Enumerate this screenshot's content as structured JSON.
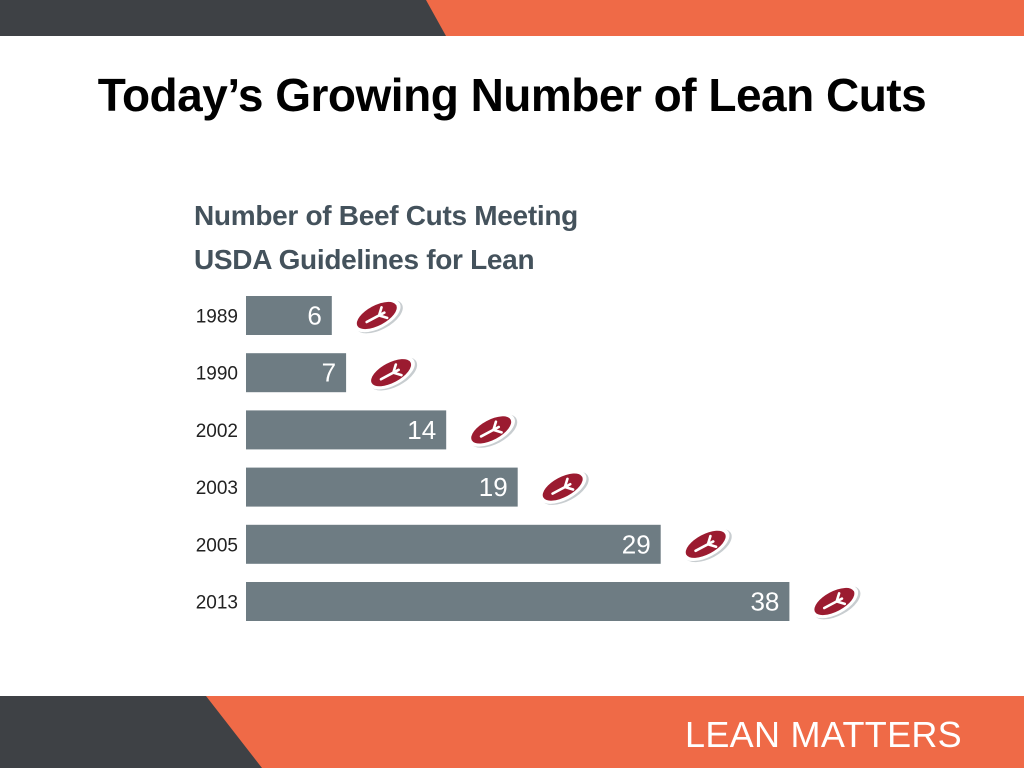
{
  "slide": {
    "title": "Today’s Growing Number of Lean Cuts",
    "footer": "LEAN MATTERS"
  },
  "colors": {
    "dark_band": "#3e4145",
    "orange_band": "#ef6a47",
    "bar": "#6e7c83",
    "bar_text": "#ffffff",
    "steak_red": "#9b1b30",
    "title_gray": "#44525c"
  },
  "chart_data": {
    "type": "bar",
    "orientation": "horizontal",
    "title_lines": [
      "Number of Beef Cuts Meeting",
      "USDA Guidelines for Lean"
    ],
    "categories": [
      "1989",
      "1990",
      "2002",
      "2003",
      "2005",
      "2013"
    ],
    "values": [
      6,
      7,
      14,
      19,
      29,
      38
    ],
    "value_labels": true,
    "marker_icon": "steak-icon",
    "grid": false,
    "legend": "none"
  }
}
